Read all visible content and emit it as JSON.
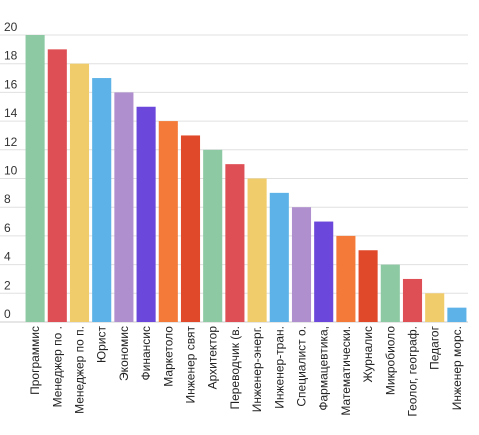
{
  "chart_data": {
    "type": "bar",
    "title": "",
    "xlabel": "",
    "ylabel": "",
    "ylim": [
      0,
      20
    ],
    "y_ticks": [
      "0",
      "2",
      "4",
      "6",
      "8",
      "10",
      "12",
      "14",
      "16",
      "18",
      "20"
    ],
    "grid": true,
    "legend": "none",
    "categories": [
      "Программис",
      "Менеджер по .",
      "Менеджер по п.",
      "Юрист",
      "Экономис",
      "Финансис",
      "Маркетоло",
      "Инженер свят",
      "Архитектор",
      "Переводчик (в.",
      "Инженер-энерг.",
      "Инженер-тран.",
      "Специалист о.",
      "Фармацевтика,",
      "Математически.",
      "Журналис",
      "Микробиоло",
      "Геолог, географ.",
      "Педагог",
      "Инженер морс."
    ],
    "values": [
      20,
      19,
      18,
      17,
      16,
      15,
      14,
      13,
      12,
      11,
      10,
      9,
      8,
      7,
      6,
      5,
      4,
      3,
      2,
      1
    ],
    "colors": [
      "#8dc9a3",
      "#de4f55",
      "#f1cc6a",
      "#5db3e7",
      "#b08fcf",
      "#6b48db",
      "#f47a3a",
      "#e04a2a",
      "#8dc9a3",
      "#de4f55",
      "#f1cc6a",
      "#5db3e7",
      "#b08fcf",
      "#6b48db",
      "#f47a3a",
      "#e04a2a",
      "#8dc9a3",
      "#de4f55",
      "#f1cc6a",
      "#5db3e7"
    ],
    "grid_color": "#e0e0e0",
    "axis_color": "#cccccc"
  }
}
